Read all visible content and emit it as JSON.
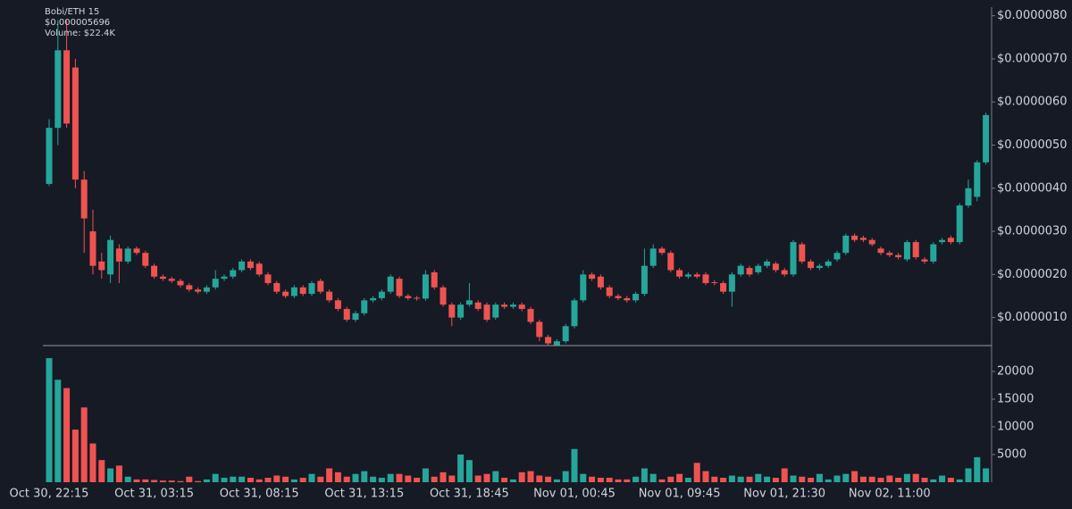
{
  "chart_data": {
    "type": "candlestick",
    "title": "Bobi/ETH 15",
    "price_label": "$0.000005696",
    "volume_label": "Volume: $22.4K",
    "up_color": "#26a69a",
    "down_color": "#ef5350",
    "categories": [
      "Oct 30, 22:15",
      null,
      null,
      null,
      null,
      null,
      null,
      null,
      null,
      null,
      null,
      null,
      "Oct 31, 03:15",
      null,
      null,
      null,
      null,
      null,
      null,
      null,
      null,
      null,
      null,
      null,
      "Oct 31, 08:15",
      null,
      null,
      null,
      null,
      null,
      null,
      null,
      null,
      null,
      null,
      null,
      "Oct 31, 13:15",
      null,
      null,
      null,
      null,
      null,
      null,
      null,
      null,
      null,
      null,
      null,
      "Oct 31, 18:45",
      null,
      null,
      null,
      null,
      null,
      null,
      null,
      null,
      null,
      null,
      null,
      "Nov 01, 00:45",
      null,
      null,
      null,
      null,
      null,
      null,
      null,
      null,
      null,
      null,
      null,
      "Nov 01, 09:45",
      null,
      null,
      null,
      null,
      null,
      null,
      null,
      null,
      null,
      null,
      null,
      "Nov 01, 21:30",
      null,
      null,
      null,
      null,
      null,
      null,
      null,
      null,
      null,
      null,
      null,
      "Nov 02, 11:00",
      null,
      null,
      null,
      null,
      null,
      null,
      null,
      null,
      null,
      null,
      null
    ],
    "open": [
      4.1e-06,
      5.4e-06,
      7.2e-06,
      6.8e-06,
      4.2e-06,
      3e-06,
      2.3e-06,
      2e-06,
      2.6e-06,
      2.3e-06,
      2.6e-06,
      2.5e-06,
      2.2e-06,
      1.95e-06,
      1.9e-06,
      1.85e-06,
      1.75e-06,
      1.65e-06,
      1.6e-06,
      1.7e-06,
      1.9e-06,
      1.95e-06,
      2.1e-06,
      2.3e-06,
      2.25e-06,
      2e-06,
      1.8e-06,
      1.6e-06,
      1.5e-06,
      1.7e-06,
      1.55e-06,
      1.85e-06,
      1.6e-06,
      1.4e-06,
      1.2e-06,
      9.5e-07,
      1.1e-06,
      1.4e-06,
      1.45e-06,
      1.6e-06,
      1.9e-06,
      1.5e-06,
      1.46e-06,
      1.44e-06,
      2.05e-06,
      1.7e-06,
      1.3e-06,
      1e-06,
      1.3e-06,
      1.35e-06,
      1.3e-06,
      1e-06,
      1.3e-06,
      1.25e-06,
      1.3e-06,
      1.2e-06,
      9e-07,
      5.5e-07,
      3.6e-07,
      4.5e-07,
      8e-07,
      1.4e-06,
      2e-06,
      1.95e-06,
      1.7e-06,
      1.5e-06,
      1.45e-06,
      1.4e-06,
      1.55e-06,
      2.2e-06,
      2.6e-06,
      2.5e-06,
      2.1e-06,
      1.95e-06,
      2e-06,
      2e-06,
      1.82e-06,
      1.8e-06,
      1.6e-06,
      2e-06,
      2.15e-06,
      2.05e-06,
      2.2e-06,
      2.25e-06,
      2.1e-06,
      2e-06,
      2.7e-06,
      2.3e-06,
      2.15e-06,
      2.2e-06,
      2.35e-06,
      2.5e-06,
      2.9e-06,
      2.85e-06,
      2.8e-06,
      2.6e-06,
      2.5e-06,
      2.45e-06,
      2.35e-06,
      2.75e-06,
      2.35e-06,
      2.3e-06,
      2.75e-06,
      2.85e-06,
      2.75e-06,
      3.6e-06,
      3.8e-06,
      4.6e-06
    ],
    "high": [
      5.6e-06,
      7.9e-06,
      7.9e-06,
      7e-06,
      4.4e-06,
      3.5e-06,
      2.5e-06,
      2.9e-06,
      2.7e-06,
      2.65e-06,
      2.65e-06,
      2.55e-06,
      2.25e-06,
      2e-06,
      1.95e-06,
      1.9e-06,
      1.8e-06,
      1.7e-06,
      1.75e-06,
      2.1e-06,
      2e-06,
      2.15e-06,
      2.35e-06,
      2.35e-06,
      2.3e-06,
      2.05e-06,
      1.85e-06,
      1.65e-06,
      1.75e-06,
      1.75e-06,
      1.85e-06,
      1.9e-06,
      1.65e-06,
      1.45e-06,
      1.25e-06,
      1.15e-06,
      1.45e-06,
      1.5e-06,
      1.65e-06,
      2e-06,
      1.95e-06,
      1.55e-06,
      1.5e-06,
      2.1e-06,
      2.1e-06,
      1.75e-06,
      1.35e-06,
      1.35e-06,
      1.8e-06,
      1.4e-06,
      1.35e-06,
      1.35e-06,
      1.35e-06,
      1.35e-06,
      1.35e-06,
      1.25e-06,
      9.5e-07,
      6e-07,
      5e-07,
      8.5e-07,
      1.45e-06,
      2.1e-06,
      2.05e-06,
      2e-06,
      1.75e-06,
      1.55e-06,
      1.5e-06,
      1.6e-06,
      2.6e-06,
      2.7e-06,
      2.65e-06,
      2.55e-06,
      2.15e-06,
      2.05e-06,
      2.05e-06,
      2.05e-06,
      1.87e-06,
      1.85e-06,
      2.05e-06,
      2.25e-06,
      2.2e-06,
      2.25e-06,
      2.35e-06,
      2.3e-06,
      2.15e-06,
      2.8e-06,
      2.75e-06,
      2.35e-06,
      2.25e-06,
      2.35e-06,
      2.55e-06,
      2.95e-06,
      2.95e-06,
      2.9e-06,
      2.85e-06,
      2.65e-06,
      2.55e-06,
      2.5e-06,
      2.8e-06,
      2.8e-06,
      2.4e-06,
      2.75e-06,
      2.85e-06,
      2.9e-06,
      3.65e-06,
      4.2e-06,
      4.65e-06,
      5.75e-06
    ],
    "low": [
      4.05e-06,
      5e-06,
      5.4e-06,
      4e-06,
      2.5e-06,
      2e-06,
      1.9e-06,
      1.8e-06,
      1.8e-06,
      2.25e-06,
      2.45e-06,
      2.15e-06,
      1.9e-06,
      1.85e-06,
      1.8e-06,
      1.7e-06,
      1.6e-06,
      1.55e-06,
      1.55e-06,
      1.65e-06,
      1.85e-06,
      1.9e-06,
      2.05e-06,
      2.1e-06,
      1.95e-06,
      1.75e-06,
      1.55e-06,
      1.45e-06,
      1.45e-06,
      1.5e-06,
      1.5e-06,
      1.55e-06,
      1.35e-06,
      1.15e-06,
      9e-07,
      9e-07,
      1.05e-06,
      1.35e-06,
      1.4e-06,
      1.55e-06,
      1.45e-06,
      1.4e-06,
      1.39e-06,
      1.39e-06,
      1.65e-06,
      1.25e-06,
      8e-07,
      9.5e-07,
      1.25e-06,
      1.15e-06,
      9e-07,
      9.5e-07,
      1.2e-06,
      1.2e-06,
      1.15e-06,
      8.5e-07,
      4.5e-07,
      3.6e-07,
      3.5e-07,
      4e-07,
      7.5e-07,
      1.35e-06,
      1.85e-06,
      1.65e-06,
      1.45e-06,
      1.4e-06,
      1.35e-06,
      1.35e-06,
      1.5e-06,
      2.15e-06,
      2.45e-06,
      2.05e-06,
      1.9e-06,
      1.9e-06,
      1.9e-06,
      1.75e-06,
      1.75e-06,
      1.55e-06,
      1.25e-06,
      1.95e-06,
      1.95e-06,
      2e-06,
      2.15e-06,
      2.05e-06,
      1.95e-06,
      1.95e-06,
      2.25e-06,
      2.1e-06,
      2.1e-06,
      2.15e-06,
      2.3e-06,
      2.45e-06,
      2.75e-06,
      2.75e-06,
      2.65e-06,
      2.45e-06,
      2.4e-06,
      2.35e-06,
      2.3e-06,
      2.35e-06,
      2.25e-06,
      2.25e-06,
      2.7e-06,
      2.7e-06,
      2.7e-06,
      3.55e-06,
      3.7e-06,
      4.55e-06
    ],
    "close": [
      5.4e-06,
      7.2e-06,
      5.5e-06,
      4.2e-06,
      3.3e-06,
      2.2e-06,
      2.1e-06,
      2.8e-06,
      2.3e-06,
      2.6e-06,
      2.5e-06,
      2.2e-06,
      1.95e-06,
      1.9e-06,
      1.85e-06,
      1.75e-06,
      1.65e-06,
      1.6e-06,
      1.7e-06,
      1.9e-06,
      1.95e-06,
      2.1e-06,
      2.3e-06,
      2.15e-06,
      2e-06,
      1.8e-06,
      1.6e-06,
      1.5e-06,
      1.7e-06,
      1.55e-06,
      1.8e-06,
      1.6e-06,
      1.4e-06,
      1.2e-06,
      9.5e-07,
      1.1e-06,
      1.4e-06,
      1.45e-06,
      1.6e-06,
      1.95e-06,
      1.5e-06,
      1.45e-06,
      1.44e-06,
      2e-06,
      1.7e-06,
      1.3e-06,
      1e-06,
      1.3e-06,
      1.4e-06,
      1.2e-06,
      9.5e-07,
      1.3e-06,
      1.25e-06,
      1.3e-06,
      1.2e-06,
      9e-07,
      5.5e-07,
      4e-07,
      4.5e-07,
      8e-07,
      1.4e-06,
      2e-06,
      1.9e-06,
      1.7e-06,
      1.5e-06,
      1.45e-06,
      1.4e-06,
      1.55e-06,
      2.2e-06,
      2.6e-06,
      2.5e-06,
      2.1e-06,
      1.95e-06,
      2e-06,
      1.95e-06,
      1.8e-06,
      1.8e-06,
      1.6e-06,
      2e-06,
      2.2e-06,
      2e-06,
      2.2e-06,
      2.3e-06,
      2.1e-06,
      2e-06,
      2.75e-06,
      2.3e-06,
      2.15e-06,
      2.2e-06,
      2.3e-06,
      2.5e-06,
      2.9e-06,
      2.8e-06,
      2.8e-06,
      2.7e-06,
      2.5e-06,
      2.45e-06,
      2.4e-06,
      2.75e-06,
      2.4e-06,
      2.3e-06,
      2.7e-06,
      2.8e-06,
      2.75e-06,
      3.6e-06,
      4e-06,
      4.6e-06,
      5.696e-06
    ],
    "volume": [
      22400,
      18500,
      17000,
      9500,
      13500,
      7000,
      4000,
      2500,
      3000,
      1000,
      500,
      500,
      400,
      300,
      300,
      200,
      1000,
      200,
      500,
      1500,
      800,
      1000,
      1000,
      800,
      500,
      800,
      1200,
      1000,
      500,
      800,
      1500,
      1000,
      2500,
      1800,
      1000,
      1500,
      2000,
      1000,
      800,
      1500,
      1500,
      1200,
      800,
      2500,
      1000,
      1800,
      1200,
      5000,
      4000,
      1200,
      1500,
      2000,
      800,
      500,
      1800,
      2000,
      1200,
      1000,
      500,
      2000,
      6000,
      1500,
      1000,
      800,
      800,
      500,
      500,
      1000,
      2500,
      1500,
      500,
      1000,
      1500,
      800,
      3500,
      2000,
      1000,
      800,
      1200,
      1000,
      1000,
      1500,
      1000,
      800,
      2500,
      1200,
      1000,
      800,
      1500,
      500,
      1200,
      1500,
      2000,
      1000,
      1000,
      800,
      1200,
      800,
      1500,
      1500,
      800,
      500,
      1200,
      800,
      500,
      2500,
      4500,
      2500
    ],
    "ylim": [
      3.5e-07,
      8.2e-06
    ],
    "yticks": [
      {
        "value": 1e-06,
        "label": "$0.0000010"
      },
      {
        "value": 2e-06,
        "label": "$0.0000020"
      },
      {
        "value": 3e-06,
        "label": "$0.0000030"
      },
      {
        "value": 4e-06,
        "label": "$0.0000040"
      },
      {
        "value": 5e-06,
        "label": "$0.0000050"
      },
      {
        "value": 6e-06,
        "label": "$0.0000060"
      },
      {
        "value": 7e-06,
        "label": "$0.0000070"
      },
      {
        "value": 8e-06,
        "label": "$0.0000080"
      }
    ],
    "y2lim": [
      0,
      22900
    ],
    "y2ticks": [
      5000,
      10000,
      15000,
      20000
    ]
  }
}
